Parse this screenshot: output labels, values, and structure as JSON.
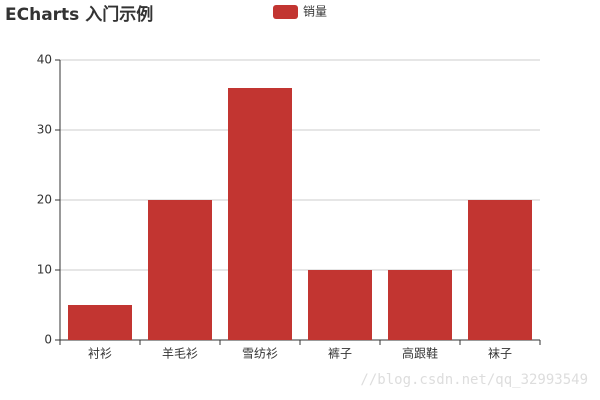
{
  "chart_data": {
    "type": "bar",
    "title": "ECharts 入门示例",
    "categories": [
      "衬衫",
      "羊毛衫",
      "雪纺衫",
      "裤子",
      "高跟鞋",
      "袜子"
    ],
    "series": [
      {
        "name": "销量",
        "color": "#c23531",
        "values": [
          5,
          20,
          36,
          10,
          10,
          20
        ]
      }
    ],
    "ylim": [
      0,
      40
    ],
    "yticks": [
      0,
      10,
      20,
      30,
      40
    ],
    "grid": true,
    "legend": "top"
  },
  "watermark": "//blog.csdn.net/qq_32993549"
}
